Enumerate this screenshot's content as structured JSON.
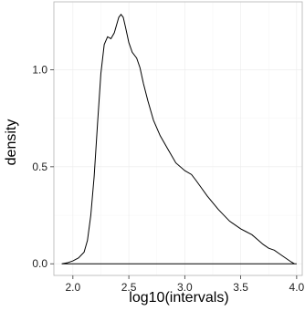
{
  "chart_data": {
    "type": "line",
    "subtype": "density",
    "xlabel": "log10(intervals)",
    "ylabel": "density",
    "xlim": [
      1.83,
      4.05
    ],
    "ylim": [
      -0.06,
      1.35
    ],
    "x_ticks": [
      "2.0",
      "2.5",
      "3.0",
      "3.5",
      "4.0"
    ],
    "y_ticks": [
      "0.0",
      "0.5",
      "1.0"
    ],
    "x_tick_values": [
      2.0,
      2.5,
      3.0,
      3.5,
      4.0
    ],
    "y_tick_values": [
      0.0,
      0.5,
      1.0
    ],
    "grid": true,
    "series": [
      {
        "x": [
          1.9,
          1.95,
          2.0,
          2.05,
          2.1,
          2.13,
          2.16,
          2.19,
          2.22,
          2.25,
          2.28,
          2.31,
          2.34,
          2.37,
          2.39,
          2.41,
          2.43,
          2.45,
          2.47,
          2.5,
          2.53,
          2.57,
          2.6,
          2.63,
          2.67,
          2.72,
          2.78,
          2.85,
          2.92,
          3.0,
          3.06,
          3.1,
          3.15,
          3.2,
          3.3,
          3.4,
          3.5,
          3.55,
          3.6,
          3.65,
          3.7,
          3.75,
          3.8,
          3.85,
          3.9,
          3.95,
          3.98,
          4.0
        ],
        "y": [
          0.0,
          0.005,
          0.015,
          0.03,
          0.06,
          0.12,
          0.25,
          0.45,
          0.72,
          0.98,
          1.13,
          1.17,
          1.16,
          1.19,
          1.23,
          1.27,
          1.285,
          1.27,
          1.22,
          1.14,
          1.09,
          1.06,
          1.01,
          0.93,
          0.84,
          0.74,
          0.66,
          0.59,
          0.52,
          0.48,
          0.46,
          0.43,
          0.39,
          0.35,
          0.28,
          0.22,
          0.18,
          0.165,
          0.15,
          0.125,
          0.1,
          0.08,
          0.07,
          0.05,
          0.03,
          0.01,
          0.0,
          0.0
        ]
      }
    ]
  }
}
